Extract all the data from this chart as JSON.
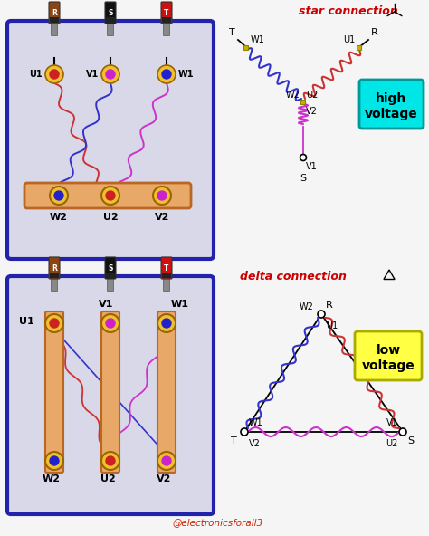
{
  "bg_color": "#f5f5f5",
  "title_star": "star connection",
  "title_delta": "delta connection",
  "high_voltage_color": "#00e5e5",
  "low_voltage_color": "#ffff44",
  "coil_blue": "#3333cc",
  "coil_red": "#cc3333",
  "coil_pink": "#cc33cc",
  "wire_blue": "#3333cc",
  "wire_red": "#cc3333",
  "wire_pink": "#cc33cc",
  "box_border": "#2222aa",
  "box_fill": "#d8d8e8",
  "terminal_fill": "#f0c030",
  "connector_fill": "#e8a868",
  "connector_outline": "#bb6622",
  "watermark": "@electronicsforall3",
  "divider_color": "#cccccc"
}
